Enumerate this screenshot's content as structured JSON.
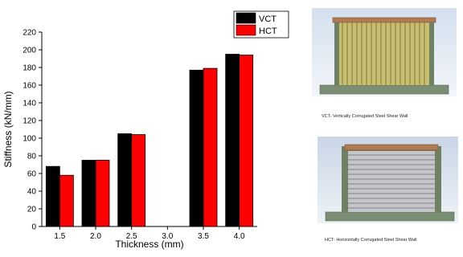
{
  "chart_data": {
    "type": "bar",
    "categories": [
      "1.5",
      "2.0",
      "2.5",
      "3.0",
      "3.5",
      "4.0"
    ],
    "series": [
      {
        "name": "VCT",
        "color": "#000000",
        "values": [
          68,
          75,
          105,
          null,
          177,
          195
        ]
      },
      {
        "name": "HCT",
        "color": "#ff0000",
        "values": [
          58,
          75,
          104,
          null,
          179,
          194
        ]
      }
    ],
    "xlabel": "Thickness (mm)",
    "ylabel": "Stiffness (kN/mm)",
    "ylim": [
      0,
      220
    ],
    "yticks": [
      "0",
      "20",
      "40",
      "60",
      "80",
      "100",
      "120",
      "140",
      "160",
      "180",
      "200",
      "220"
    ],
    "legend_placement": "top-right",
    "grid": false
  },
  "panels": {
    "vct_caption": "VCT- Vertically Corrugated Steel Shear Wall",
    "hct_caption": "HCT- Horizontally Corrugated Steel Shear Wall"
  }
}
